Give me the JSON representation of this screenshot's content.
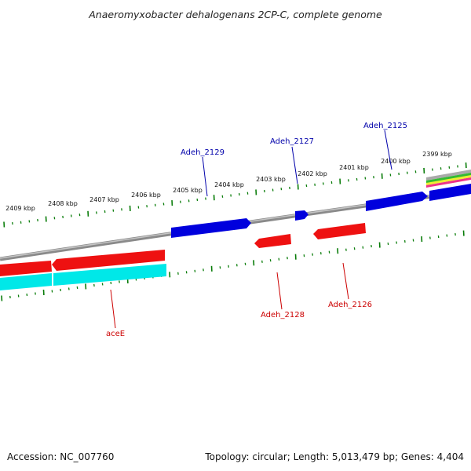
{
  "title": "Anaeromyxobacter dehalogenans 2CP-C, complete genome",
  "footer": {
    "accession": "Accession: NC_007760",
    "summary": "Topology: circular; Length: 5,013,479 bp; Genes: 4,404"
  },
  "colors": {
    "forward_gene": "#0000dd",
    "reverse_gene": "#dd0000",
    "cyan_feature": "#00e8e8",
    "tick": "#0a7d0a",
    "backbone": "#8a8a8a"
  },
  "kbp_labels": [
    "2409 kbp",
    "2408 kbp",
    "2407 kbp",
    "2406 kbp",
    "2405 kbp",
    "2404 kbp",
    "2403 kbp",
    "2402 kbp",
    "2401 kbp",
    "2400 kbp",
    "2399 kbp"
  ],
  "gene_labels": {
    "adeh_2129": "Adeh_2129",
    "adeh_2127": "Adeh_2127",
    "adeh_2125": "Adeh_2125",
    "adeh_2128": "Adeh_2128",
    "adeh_2126": "Adeh_2126",
    "acee": "aceE"
  }
}
